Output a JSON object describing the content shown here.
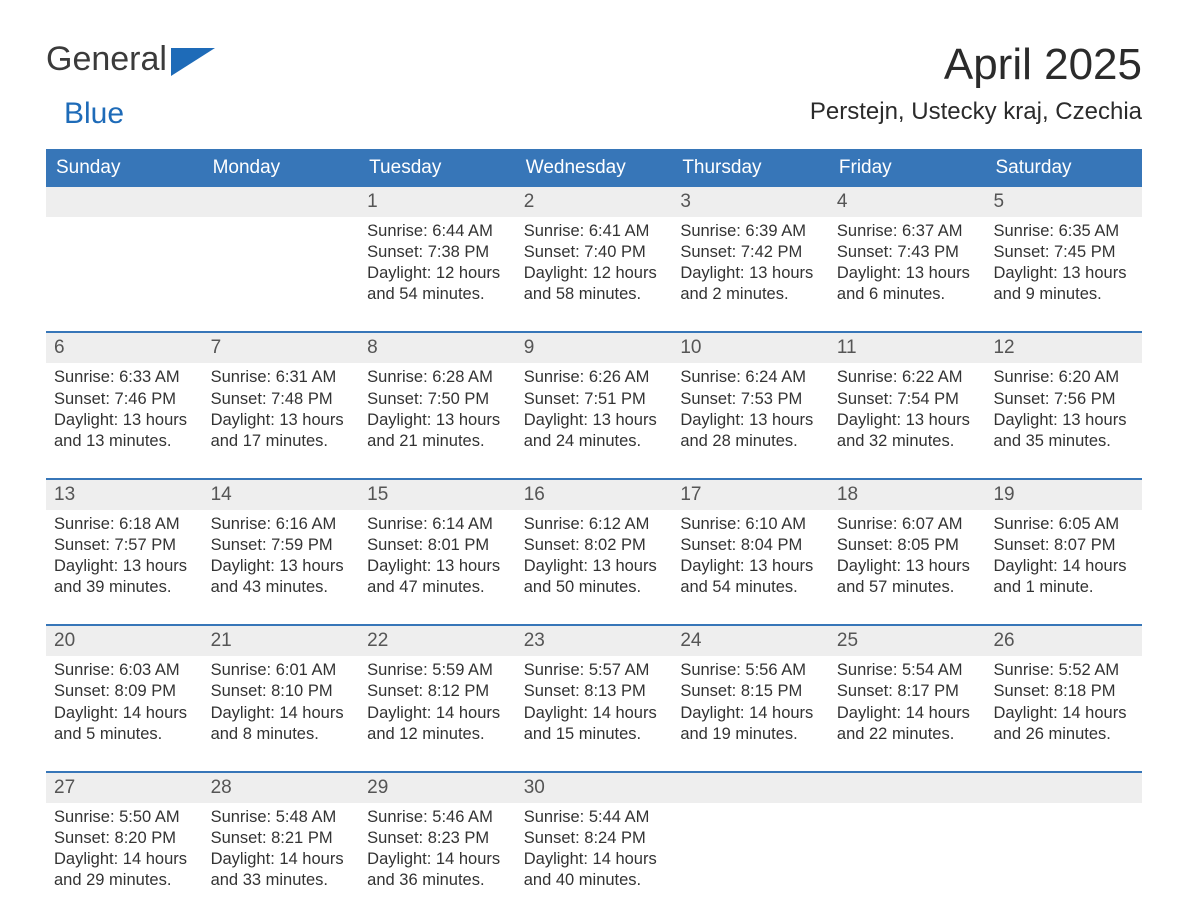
{
  "logo": {
    "general": "General",
    "blue": "Blue"
  },
  "title": "April 2025",
  "location": "Perstejn, Ustecky kraj, Czechia",
  "colors": {
    "header_bg": "#3776b8",
    "header_text": "#ffffff",
    "daynum_bg": "#eeeeee",
    "week_border": "#3776b8",
    "body_text": "#333333",
    "logo_gray": "#3b3b3b",
    "logo_blue": "#1e6bb8"
  },
  "typography": {
    "title_fontsize": 44,
    "location_fontsize": 24,
    "weekday_fontsize": 19,
    "daynum_fontsize": 19,
    "details_fontsize": 16.5
  },
  "weekdays": [
    "Sunday",
    "Monday",
    "Tuesday",
    "Wednesday",
    "Thursday",
    "Friday",
    "Saturday"
  ],
  "weeks": [
    [
      {
        "day": "",
        "sunrise": "",
        "sunset": "",
        "daylight": ""
      },
      {
        "day": "",
        "sunrise": "",
        "sunset": "",
        "daylight": ""
      },
      {
        "day": "1",
        "sunrise": "Sunrise: 6:44 AM",
        "sunset": "Sunset: 7:38 PM",
        "daylight": "Daylight: 12 hours and 54 minutes."
      },
      {
        "day": "2",
        "sunrise": "Sunrise: 6:41 AM",
        "sunset": "Sunset: 7:40 PM",
        "daylight": "Daylight: 12 hours and 58 minutes."
      },
      {
        "day": "3",
        "sunrise": "Sunrise: 6:39 AM",
        "sunset": "Sunset: 7:42 PM",
        "daylight": "Daylight: 13 hours and 2 minutes."
      },
      {
        "day": "4",
        "sunrise": "Sunrise: 6:37 AM",
        "sunset": "Sunset: 7:43 PM",
        "daylight": "Daylight: 13 hours and 6 minutes."
      },
      {
        "day": "5",
        "sunrise": "Sunrise: 6:35 AM",
        "sunset": "Sunset: 7:45 PM",
        "daylight": "Daylight: 13 hours and 9 minutes."
      }
    ],
    [
      {
        "day": "6",
        "sunrise": "Sunrise: 6:33 AM",
        "sunset": "Sunset: 7:46 PM",
        "daylight": "Daylight: 13 hours and 13 minutes."
      },
      {
        "day": "7",
        "sunrise": "Sunrise: 6:31 AM",
        "sunset": "Sunset: 7:48 PM",
        "daylight": "Daylight: 13 hours and 17 minutes."
      },
      {
        "day": "8",
        "sunrise": "Sunrise: 6:28 AM",
        "sunset": "Sunset: 7:50 PM",
        "daylight": "Daylight: 13 hours and 21 minutes."
      },
      {
        "day": "9",
        "sunrise": "Sunrise: 6:26 AM",
        "sunset": "Sunset: 7:51 PM",
        "daylight": "Daylight: 13 hours and 24 minutes."
      },
      {
        "day": "10",
        "sunrise": "Sunrise: 6:24 AM",
        "sunset": "Sunset: 7:53 PM",
        "daylight": "Daylight: 13 hours and 28 minutes."
      },
      {
        "day": "11",
        "sunrise": "Sunrise: 6:22 AM",
        "sunset": "Sunset: 7:54 PM",
        "daylight": "Daylight: 13 hours and 32 minutes."
      },
      {
        "day": "12",
        "sunrise": "Sunrise: 6:20 AM",
        "sunset": "Sunset: 7:56 PM",
        "daylight": "Daylight: 13 hours and 35 minutes."
      }
    ],
    [
      {
        "day": "13",
        "sunrise": "Sunrise: 6:18 AM",
        "sunset": "Sunset: 7:57 PM",
        "daylight": "Daylight: 13 hours and 39 minutes."
      },
      {
        "day": "14",
        "sunrise": "Sunrise: 6:16 AM",
        "sunset": "Sunset: 7:59 PM",
        "daylight": "Daylight: 13 hours and 43 minutes."
      },
      {
        "day": "15",
        "sunrise": "Sunrise: 6:14 AM",
        "sunset": "Sunset: 8:01 PM",
        "daylight": "Daylight: 13 hours and 47 minutes."
      },
      {
        "day": "16",
        "sunrise": "Sunrise: 6:12 AM",
        "sunset": "Sunset: 8:02 PM",
        "daylight": "Daylight: 13 hours and 50 minutes."
      },
      {
        "day": "17",
        "sunrise": "Sunrise: 6:10 AM",
        "sunset": "Sunset: 8:04 PM",
        "daylight": "Daylight: 13 hours and 54 minutes."
      },
      {
        "day": "18",
        "sunrise": "Sunrise: 6:07 AM",
        "sunset": "Sunset: 8:05 PM",
        "daylight": "Daylight: 13 hours and 57 minutes."
      },
      {
        "day": "19",
        "sunrise": "Sunrise: 6:05 AM",
        "sunset": "Sunset: 8:07 PM",
        "daylight": "Daylight: 14 hours and 1 minute."
      }
    ],
    [
      {
        "day": "20",
        "sunrise": "Sunrise: 6:03 AM",
        "sunset": "Sunset: 8:09 PM",
        "daylight": "Daylight: 14 hours and 5 minutes."
      },
      {
        "day": "21",
        "sunrise": "Sunrise: 6:01 AM",
        "sunset": "Sunset: 8:10 PM",
        "daylight": "Daylight: 14 hours and 8 minutes."
      },
      {
        "day": "22",
        "sunrise": "Sunrise: 5:59 AM",
        "sunset": "Sunset: 8:12 PM",
        "daylight": "Daylight: 14 hours and 12 minutes."
      },
      {
        "day": "23",
        "sunrise": "Sunrise: 5:57 AM",
        "sunset": "Sunset: 8:13 PM",
        "daylight": "Daylight: 14 hours and 15 minutes."
      },
      {
        "day": "24",
        "sunrise": "Sunrise: 5:56 AM",
        "sunset": "Sunset: 8:15 PM",
        "daylight": "Daylight: 14 hours and 19 minutes."
      },
      {
        "day": "25",
        "sunrise": "Sunrise: 5:54 AM",
        "sunset": "Sunset: 8:17 PM",
        "daylight": "Daylight: 14 hours and 22 minutes."
      },
      {
        "day": "26",
        "sunrise": "Sunrise: 5:52 AM",
        "sunset": "Sunset: 8:18 PM",
        "daylight": "Daylight: 14 hours and 26 minutes."
      }
    ],
    [
      {
        "day": "27",
        "sunrise": "Sunrise: 5:50 AM",
        "sunset": "Sunset: 8:20 PM",
        "daylight": "Daylight: 14 hours and 29 minutes."
      },
      {
        "day": "28",
        "sunrise": "Sunrise: 5:48 AM",
        "sunset": "Sunset: 8:21 PM",
        "daylight": "Daylight: 14 hours and 33 minutes."
      },
      {
        "day": "29",
        "sunrise": "Sunrise: 5:46 AM",
        "sunset": "Sunset: 8:23 PM",
        "daylight": "Daylight: 14 hours and 36 minutes."
      },
      {
        "day": "30",
        "sunrise": "Sunrise: 5:44 AM",
        "sunset": "Sunset: 8:24 PM",
        "daylight": "Daylight: 14 hours and 40 minutes."
      },
      {
        "day": "",
        "sunrise": "",
        "sunset": "",
        "daylight": ""
      },
      {
        "day": "",
        "sunrise": "",
        "sunset": "",
        "daylight": ""
      },
      {
        "day": "",
        "sunrise": "",
        "sunset": "",
        "daylight": ""
      }
    ]
  ]
}
